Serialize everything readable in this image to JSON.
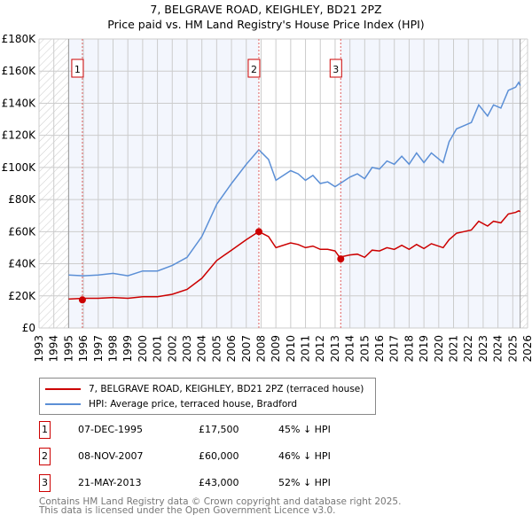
{
  "chart_data": {
    "type": "line",
    "title": "7, BELGRAVE ROAD, KEIGHLEY, BD21 2PZ",
    "subtitle": "Price paid vs. HM Land Registry's House Price Index (HPI)",
    "xlim": [
      1993,
      2026
    ],
    "ylim": [
      0,
      180000
    ],
    "yticks": [
      {
        "v": 0,
        "label": "£0"
      },
      {
        "v": 20000,
        "label": "£20K"
      },
      {
        "v": 40000,
        "label": "£40K"
      },
      {
        "v": 60000,
        "label": "£60K"
      },
      {
        "v": 80000,
        "label": "£80K"
      },
      {
        "v": 100000,
        "label": "£100K"
      },
      {
        "v": 120000,
        "label": "£120K"
      },
      {
        "v": 140000,
        "label": "£140K"
      },
      {
        "v": 160000,
        "label": "£160K"
      },
      {
        "v": 180000,
        "label": "£180K"
      }
    ],
    "xticks": [
      "1993",
      "1994",
      "1995",
      "1996",
      "1997",
      "1998",
      "1999",
      "2000",
      "2001",
      "2002",
      "2003",
      "2004",
      "2005",
      "2006",
      "2007",
      "2008",
      "2009",
      "2010",
      "2011",
      "2012",
      "2013",
      "2014",
      "2015",
      "2016",
      "2017",
      "2018",
      "2019",
      "2020",
      "2021",
      "2022",
      "2023",
      "2024",
      "2025",
      "2026"
    ],
    "grid": true,
    "data_range": [
      1995,
      2025.5
    ],
    "series": [
      {
        "name": "7, BELGRAVE ROAD, KEIGHLEY, BD21 2PZ (terraced house)",
        "color": "#cc0000",
        "x": [
          1995,
          1996,
          1997,
          1998,
          1999,
          2000,
          2001,
          2002,
          2003,
          2004,
          2005,
          2006,
          2007,
          2007.85,
          2008.5,
          2009,
          2010,
          2010.5,
          2011,
          2011.5,
          2012,
          2012.5,
          2013,
          2013.38,
          2013.5,
          2014,
          2014.5,
          2015,
          2015.5,
          2016,
          2016.5,
          2017,
          2017.5,
          2018,
          2018.5,
          2019,
          2019.5,
          2020.3,
          2020.7,
          2021.2,
          2021.7,
          2022.2,
          2022.7,
          2023.3,
          2023.7,
          2024.2,
          2024.7,
          2025.2,
          2025.4,
          2025.5
        ],
        "y": [
          18000,
          18500,
          18500,
          19000,
          18500,
          19500,
          19500,
          21000,
          24000,
          31000,
          42000,
          48500,
          55000,
          60000,
          57000,
          50000,
          53000,
          52000,
          50000,
          51000,
          49000,
          49000,
          48000,
          43000,
          44500,
          45500,
          46000,
          44000,
          48500,
          48000,
          50000,
          49000,
          51500,
          49000,
          52000,
          49500,
          52500,
          50000,
          55000,
          59000,
          60000,
          61000,
          66500,
          63500,
          66500,
          65500,
          71000,
          72000,
          73000,
          72500
        ]
      },
      {
        "name": "HPI: Average price, terraced house, Bradford",
        "color": "#5b8fd6",
        "x": [
          1995,
          1996,
          1997,
          1998,
          1999,
          2000,
          2001,
          2002,
          2003,
          2004,
          2005,
          2006,
          2007,
          2007.85,
          2008.5,
          2009,
          2010,
          2010.5,
          2011,
          2011.5,
          2012,
          2012.5,
          2013,
          2013.5,
          2014,
          2014.5,
          2015,
          2015.5,
          2016,
          2016.5,
          2017,
          2017.5,
          2018,
          2018.5,
          2019,
          2019.5,
          2020.3,
          2020.7,
          2021.2,
          2021.7,
          2022.2,
          2022.7,
          2023.3,
          2023.7,
          2024.2,
          2024.7,
          2025.2,
          2025.4,
          2025.5
        ],
        "y": [
          33000,
          32500,
          33000,
          34000,
          32500,
          35500,
          35500,
          39000,
          44000,
          57000,
          77000,
          90000,
          102000,
          111000,
          105000,
          92000,
          98000,
          96000,
          92000,
          95000,
          90000,
          91000,
          88000,
          91000,
          94000,
          96000,
          93000,
          100000,
          99000,
          104000,
          102000,
          107000,
          102000,
          109000,
          103000,
          109000,
          103000,
          116000,
          124000,
          126000,
          128000,
          139000,
          132000,
          139000,
          137000,
          148000,
          150000,
          153000,
          151000
        ]
      }
    ],
    "sales": [
      {
        "n": "1",
        "x": 1995.93,
        "price": 17500,
        "date": "07-DEC-1995",
        "price_label": "£17,500",
        "hpi": "45% ↓ HPI"
      },
      {
        "n": "2",
        "x": 2007.85,
        "price": 60000,
        "date": "08-NOV-2007",
        "price_label": "£60,000",
        "hpi": "46% ↓ HPI"
      },
      {
        "n": "3",
        "x": 2013.38,
        "price": 43000,
        "date": "21-MAY-2013",
        "price_label": "£43,000",
        "hpi": "52% ↓ HPI"
      }
    ],
    "legend_position": "below"
  },
  "footer": {
    "line1": "Contains HM Land Registry data © Crown copyright and database right 2025.",
    "line2": "This data is licensed under the Open Government Licence v3.0."
  }
}
